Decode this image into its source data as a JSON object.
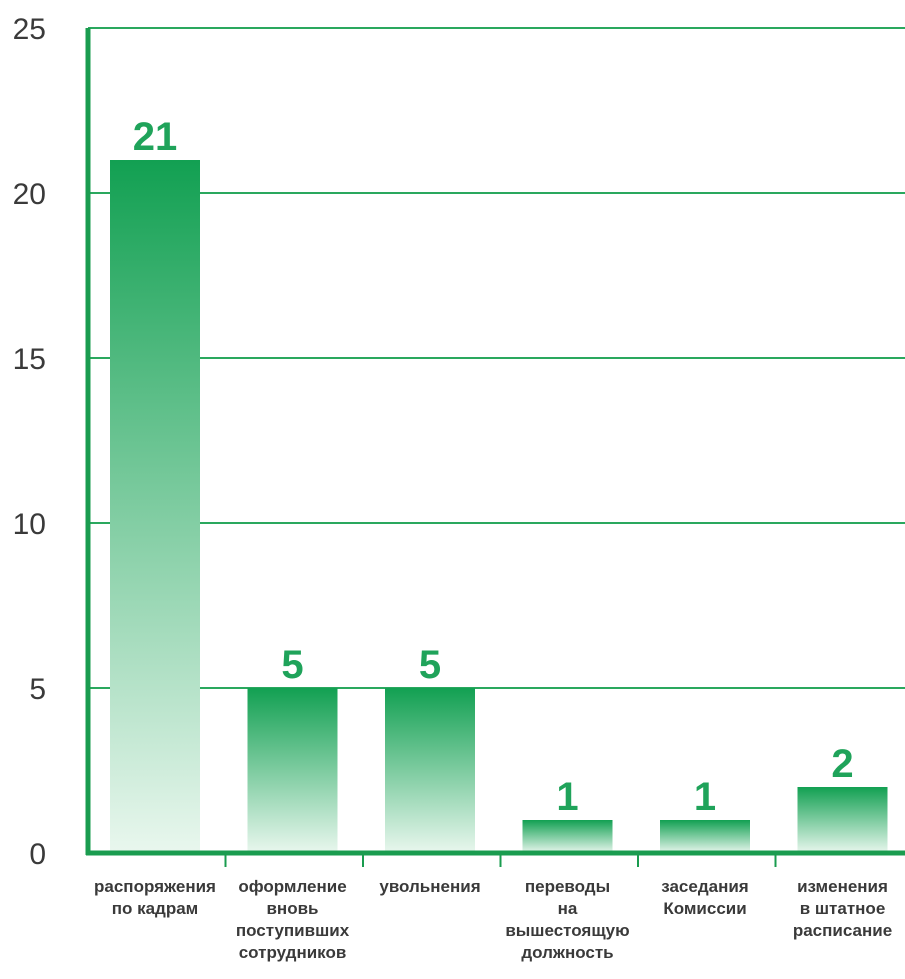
{
  "chart_data": {
    "type": "bar",
    "title": "",
    "xlabel": "",
    "ylabel": "",
    "ylim": [
      0,
      25
    ],
    "yticks": [
      0,
      5,
      10,
      15,
      20,
      25
    ],
    "grid": true,
    "categories": [
      [
        "распоряжения",
        "по кадрам"
      ],
      [
        "оформление",
        "вновь",
        "поступивших",
        "сотрудников"
      ],
      [
        "увольнения"
      ],
      [
        "переводы",
        "на",
        "вышестоящую",
        "должность"
      ],
      [
        "заседания",
        "Комиссии"
      ],
      [
        "изменения",
        "в штатное",
        "расписание"
      ]
    ],
    "values": [
      21,
      5,
      5,
      1,
      1,
      2
    ],
    "value_labels": [
      "21",
      "5",
      "5",
      "1",
      "1",
      "2"
    ],
    "colors": {
      "axis": "#1a9c4f",
      "grid": "#2aa85e",
      "bar_top": "#12a052",
      "bar_bottom": "#e9f7ee",
      "value_label": "#1fa35a"
    }
  }
}
